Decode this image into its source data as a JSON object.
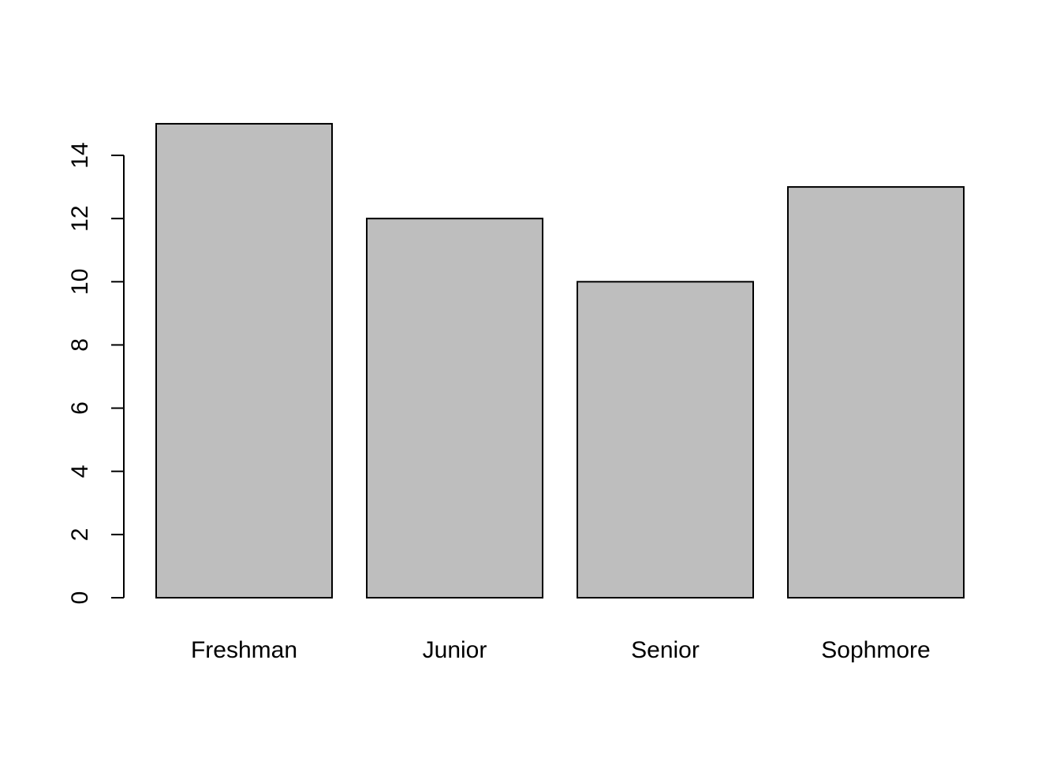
{
  "chart_data": {
    "type": "bar",
    "categories": [
      "Freshman",
      "Junior",
      "Senior",
      "Sophmore"
    ],
    "values": [
      15,
      12,
      10,
      13
    ],
    "title": "",
    "xlabel": "",
    "ylabel": "",
    "ylim": [
      0,
      15
    ],
    "yticks": [
      0,
      2,
      4,
      6,
      8,
      10,
      12,
      14
    ],
    "ytick_labels": [
      "0",
      "2",
      "4",
      "6",
      "8",
      "10",
      "12",
      "14"
    ],
    "grid": false,
    "legend": "none",
    "colors": {
      "bar_fill": "#bebebe",
      "bar_stroke": "#000000",
      "background": "#ffffff"
    }
  }
}
